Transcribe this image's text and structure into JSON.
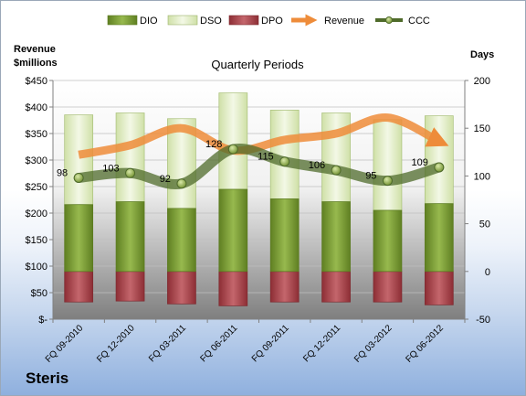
{
  "company": "Steris",
  "chart_data": {
    "type": "bar",
    "title": "Quarterly Periods",
    "left_axis_title": [
      "Revenue",
      "$millions"
    ],
    "right_axis_title": "Days",
    "categories": [
      "FQ 09-2010",
      "FQ 12-2010",
      "FQ 03-2011",
      "FQ 06-2011",
      "FQ 09-2011",
      "FQ 12-2011",
      "FQ 03-2012",
      "FQ 06-2012"
    ],
    "left_ticks": [
      "$-",
      "$50",
      "$100",
      "$150",
      "$200",
      "$250",
      "$300",
      "$350",
      "$400",
      "$450"
    ],
    "right_ticks": [
      "-50",
      "0",
      "50",
      "100",
      "150",
      "200"
    ],
    "left_ylim": [
      0,
      450
    ],
    "right_ylim": [
      -50,
      200
    ],
    "legend_position": "top",
    "series": [
      {
        "name": "DIO",
        "axis": "right",
        "kind": "stacked-bar",
        "color": "#7fa13a",
        "values": [
          70,
          73,
          66,
          86,
          76,
          73,
          64,
          71
        ]
      },
      {
        "name": "DSO",
        "axis": "right",
        "kind": "stacked-bar",
        "color": "#e4efc8",
        "values": [
          94,
          93,
          94,
          101,
          93,
          93,
          95,
          92
        ]
      },
      {
        "name": "DPO",
        "axis": "right",
        "kind": "negative-bar",
        "color": "#b0484f",
        "values": [
          32,
          31,
          34,
          36,
          32,
          32,
          32,
          35
        ]
      },
      {
        "name": "Revenue",
        "axis": "left",
        "kind": "line",
        "color": "#ee8c3a",
        "values": [
          310,
          328,
          360,
          318,
          338,
          350,
          380,
          335
        ]
      },
      {
        "name": "CCC",
        "axis": "right",
        "kind": "line",
        "color": "#4f6b2b",
        "values": [
          98,
          103,
          92,
          128,
          115,
          106,
          95,
          109
        ]
      }
    ],
    "data_labels": [
      "98",
      "103",
      "92",
      "128",
      "115",
      "106",
      "95",
      "109"
    ]
  }
}
